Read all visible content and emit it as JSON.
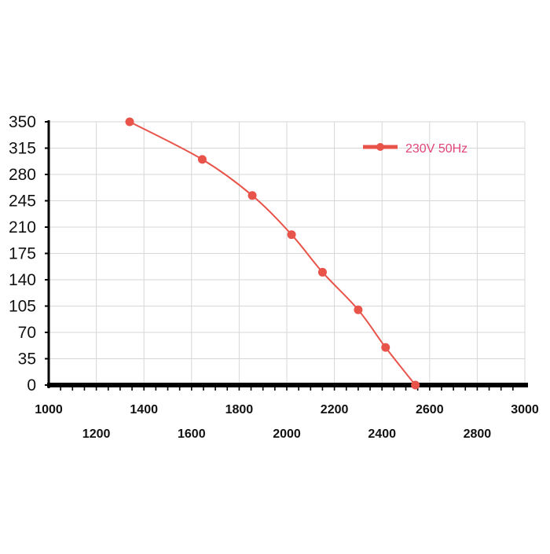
{
  "colors": {
    "series": "#e8534a",
    "legend_text": "#e0457a",
    "grid": "#d7d7d7",
    "axis": "#000000"
  },
  "chart_data": {
    "type": "line",
    "title": "",
    "xlabel": "",
    "ylabel": "",
    "xlim": [
      1000,
      3000
    ],
    "ylim": [
      0,
      350
    ],
    "x_ticks_upper": [
      "1000",
      "1400",
      "1800",
      "2200",
      "2600",
      "3000"
    ],
    "x_ticks_lower": [
      "1200",
      "1600",
      "2000",
      "2400",
      "2800"
    ],
    "y_ticks": [
      "0",
      "35",
      "70",
      "105",
      "140",
      "175",
      "210",
      "245",
      "280",
      "315",
      "350"
    ],
    "grid": true,
    "legend_position": "top-right",
    "series": [
      {
        "name": "230V 50Hz",
        "x": [
          1340,
          1645,
          1855,
          2020,
          2150,
          2300,
          2415,
          2540
        ],
        "y": [
          350,
          300,
          252,
          200,
          150,
          100,
          50,
          0
        ]
      }
    ]
  }
}
